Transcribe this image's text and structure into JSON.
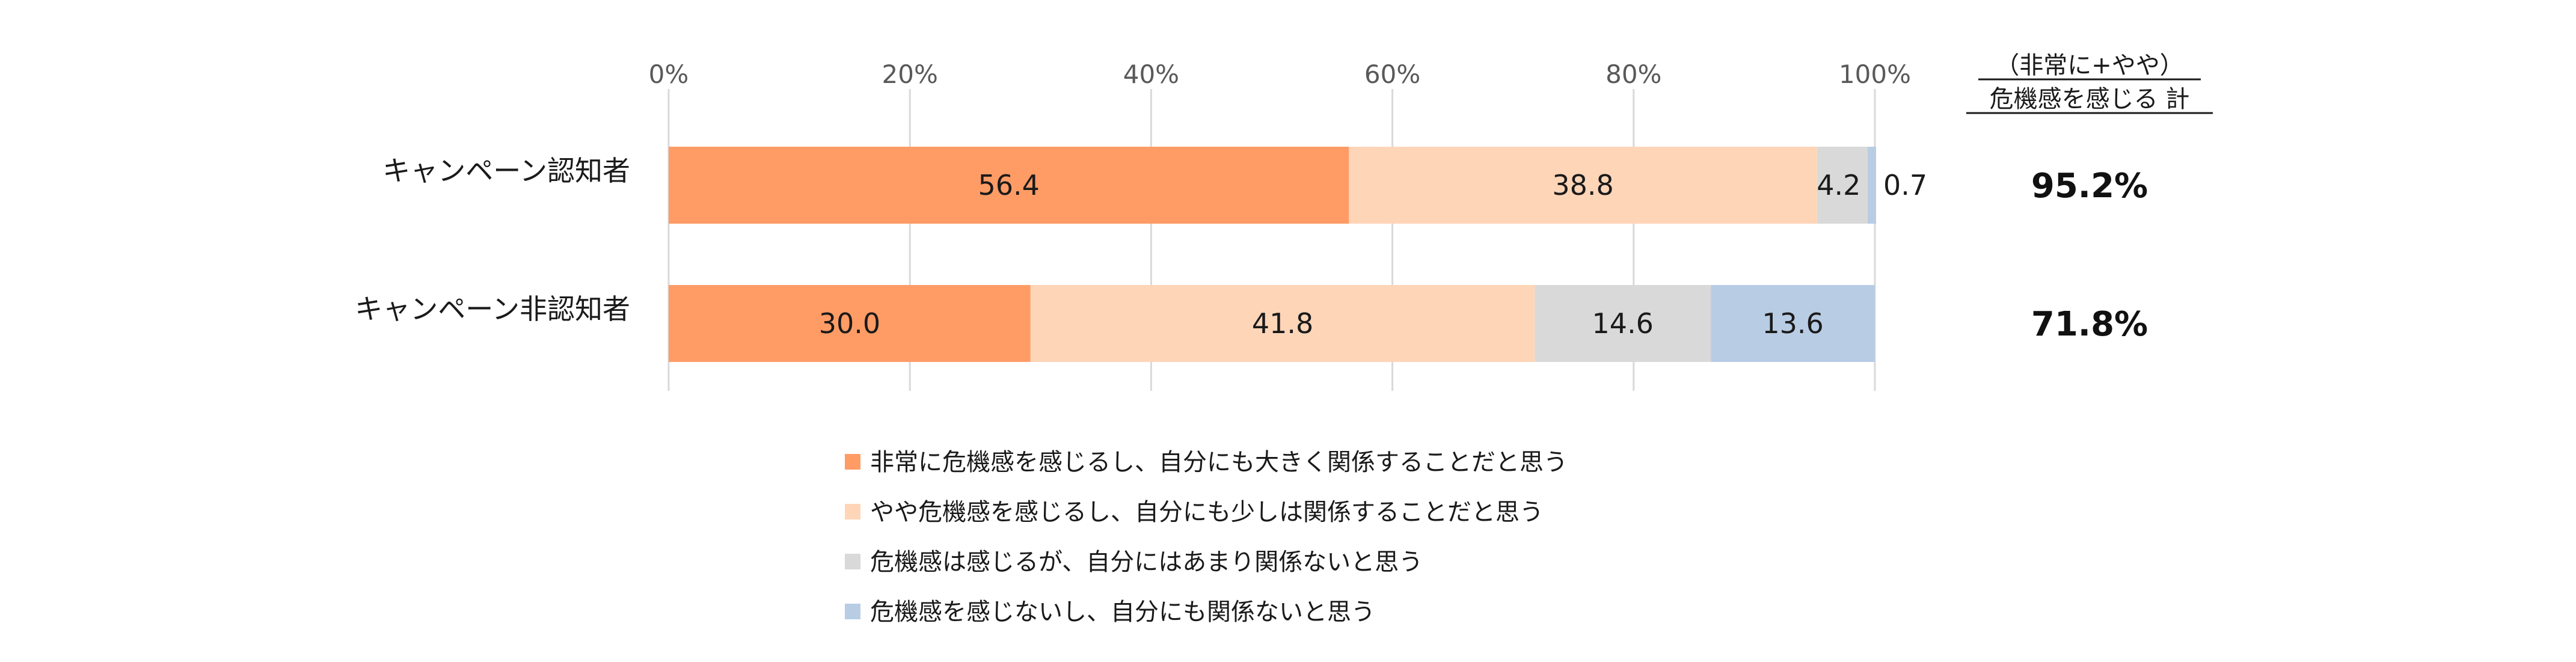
{
  "chart_data": {
    "type": "bar",
    "orientation": "horizontal",
    "stacked": true,
    "categories": [
      "キャンペーン認知者",
      "キャンペーン非認知者"
    ],
    "series": [
      {
        "name": "非常に危機感を感じるし、自分にも大きく関係することだと思う",
        "color": "#FF9C66",
        "values": [
          56.4,
          30.0
        ],
        "labels": [
          "56.4",
          "30.0"
        ]
      },
      {
        "name": "やや危機感を感じるし、自分にも少しは関係することだと思う",
        "color": "#FFD5B8",
        "values": [
          38.8,
          41.8
        ],
        "labels": [
          "38.8",
          "41.8"
        ]
      },
      {
        "name": "危機感は感じるが、自分にはあまり関係ないと思う",
        "color": "#D9D9D9",
        "values": [
          4.2,
          14.6
        ],
        "labels": [
          "4.2",
          "14.6"
        ]
      },
      {
        "name": "危機感を感じないし、自分にも関係ないと思う",
        "color": "#B8CCE4",
        "values": [
          0.7,
          13.6
        ],
        "labels": [
          "0.7",
          "13.6"
        ]
      }
    ],
    "xlim": [
      0,
      100
    ],
    "xticks": [
      "0%",
      "20%",
      "40%",
      "60%",
      "80%",
      "100%"
    ],
    "grid": true,
    "legend_position": "bottom",
    "totals": {
      "header_line1": "（非常に+やや）",
      "header_line2": "危機感を感じる 計",
      "values": [
        "95.2%",
        "71.8%"
      ]
    }
  }
}
